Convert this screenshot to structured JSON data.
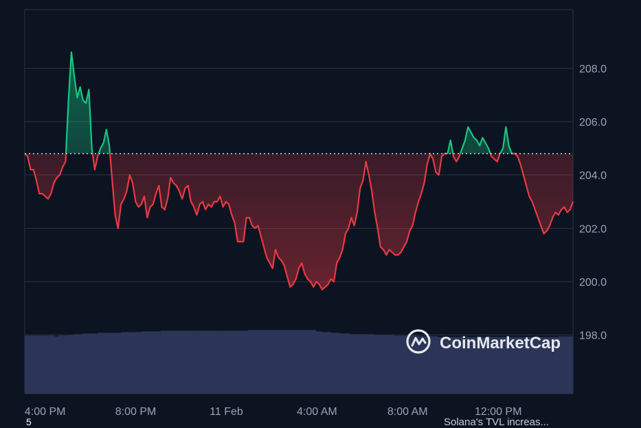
{
  "chart_data": {
    "type": "area",
    "reference_price": 204.8,
    "ylim": [
      195.8,
      210.2
    ],
    "y_ticks": [
      "208.0",
      "206.0",
      "204.0",
      "202.0",
      "200.0",
      "198.0"
    ],
    "x_ticks": [
      "4:00 PM",
      "8:00 PM",
      "11 Feb",
      "4:00 AM",
      "8:00 AM",
      "12:00 PM"
    ],
    "colors": {
      "up": "#16c784",
      "down": "#ea3943",
      "volume": "#2b3557",
      "grid": "#2a3344",
      "background": "#0d1421"
    },
    "series": [
      {
        "values": [
          204.8,
          204.7,
          204.2,
          204.2,
          203.8,
          203.3,
          203.3,
          203.2,
          203.1,
          203.3,
          203.7,
          203.9,
          204.0,
          204.3,
          204.5,
          206.8,
          208.6,
          207.7,
          206.9,
          207.3,
          206.8,
          206.7,
          207.2,
          205.0,
          204.2,
          204.7,
          205.0,
          205.2,
          205.7,
          205.1,
          203.8,
          202.5,
          202.0,
          202.9,
          203.1,
          203.4,
          204.0,
          203.7,
          203.0,
          202.8,
          202.9,
          203.2,
          202.4,
          202.8,
          202.9,
          203.3,
          203.6,
          202.8,
          202.7,
          203.1,
          203.9,
          203.7,
          203.6,
          203.4,
          203.1,
          203.5,
          203.6,
          203.0,
          202.8,
          202.5,
          202.9,
          203.0,
          202.7,
          202.9,
          202.8,
          203.0,
          203.0,
          203.2,
          202.8,
          203.0,
          202.9,
          202.5,
          202.2,
          201.5,
          201.5,
          201.5,
          202.4,
          202.4,
          202.1,
          202.0,
          202.1,
          201.7,
          201.3,
          200.9,
          200.7,
          200.5,
          201.2,
          200.9,
          200.8,
          200.6,
          200.2,
          199.8,
          199.9,
          200.1,
          200.5,
          200.7,
          200.3,
          200.1,
          200.0,
          199.8,
          200.0,
          199.9,
          199.7,
          199.8,
          199.9,
          200.1,
          200.0,
          200.7,
          200.9,
          201.2,
          201.8,
          202.0,
          202.4,
          202.1,
          202.6,
          203.5,
          203.8,
          204.5,
          204.0,
          203.4,
          202.6,
          202.0,
          201.3,
          201.2,
          201.0,
          201.2,
          201.1,
          201.0,
          201.0,
          201.1,
          201.3,
          201.5,
          201.9,
          202.1,
          202.6,
          203.0,
          203.3,
          203.7,
          204.4,
          204.8,
          204.6,
          204.1,
          204.0,
          204.7,
          204.8,
          204.8,
          205.3,
          204.7,
          204.5,
          204.7,
          205.0,
          205.3,
          205.8,
          205.6,
          205.4,
          205.3,
          205.1,
          205.4,
          205.2,
          205.0,
          204.7,
          204.6,
          204.5,
          204.8,
          205.0,
          205.8,
          205.1,
          204.8,
          204.8,
          204.7,
          204.4,
          204.0,
          203.6,
          203.2,
          203.0,
          202.7,
          202.4,
          202.1,
          201.8,
          201.9,
          202.1,
          202.4,
          202.6,
          202.5,
          202.7,
          202.8,
          202.6,
          202.7,
          203.0
        ]
      }
    ],
    "volume": [
      0.82,
      0.82,
      0.82,
      0.82,
      0.82,
      0.82,
      0.81,
      0.82,
      0.82,
      0.83,
      0.84,
      0.84,
      0.85,
      0.85,
      0.85,
      0.86,
      0.86,
      0.86,
      0.86,
      0.86,
      0.87,
      0.87,
      0.87,
      0.87,
      0.88,
      0.88,
      0.88,
      0.88,
      0.89,
      0.89,
      0.89,
      0.89,
      0.89,
      0.89,
      0.89,
      0.89,
      0.89,
      0.89,
      0.89,
      0.89,
      0.89,
      0.89,
      0.89,
      0.89,
      0.89,
      0.89,
      0.9,
      0.9,
      0.9,
      0.9,
      0.9,
      0.9,
      0.9,
      0.9,
      0.9,
      0.9,
      0.9,
      0.9,
      0.9,
      0.9,
      0.88,
      0.87,
      0.87,
      0.86,
      0.86,
      0.85,
      0.85,
      0.84,
      0.84,
      0.84,
      0.84,
      0.84,
      0.83,
      0.83,
      0.83,
      0.83,
      0.82,
      0.82,
      0.82,
      0.82,
      0.82,
      0.81,
      0.81,
      0.81,
      0.81,
      0.8,
      0.8,
      0.8,
      0.8,
      0.8,
      0.8,
      0.8,
      0.8,
      0.8,
      0.8,
      0.8,
      0.8,
      0.8,
      0.8,
      0.8,
      0.8,
      0.8,
      0.8,
      0.8,
      0.8,
      0.8,
      0.8,
      0.8,
      0.8,
      0.8,
      0.81,
      0.81,
      0.81
    ]
  },
  "watermark": {
    "text": "CoinMarketCap"
  },
  "footer": {
    "left": "5",
    "right": "Solana's TVL increas..."
  }
}
